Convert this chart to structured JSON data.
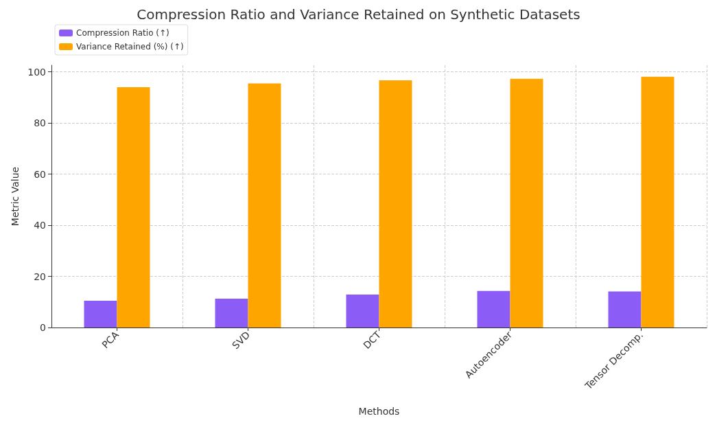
{
  "chart_data": {
    "type": "bar",
    "title": "Compression Ratio and Variance Retained on Synthetic Datasets",
    "xlabel": "Methods",
    "ylabel": "Metric Value",
    "categories": [
      "PCA",
      "SVD",
      "DCT",
      "Autoencoder",
      "Tensor Decomp."
    ],
    "series": [
      {
        "name": "Compression Ratio (↑)",
        "color": "#8b5cf6",
        "values": [
          10.5,
          11.3,
          12.9,
          14.3,
          14.1
        ]
      },
      {
        "name": "Variance Retained (%) (↑)",
        "color": "#ffa500",
        "values": [
          94,
          95.5,
          96.7,
          97.3,
          98.1
        ]
      }
    ],
    "ylim": [
      0,
      102.6
    ],
    "yticks": [
      0,
      20,
      40,
      60,
      80,
      100
    ],
    "grid": true,
    "legend": "top left"
  }
}
